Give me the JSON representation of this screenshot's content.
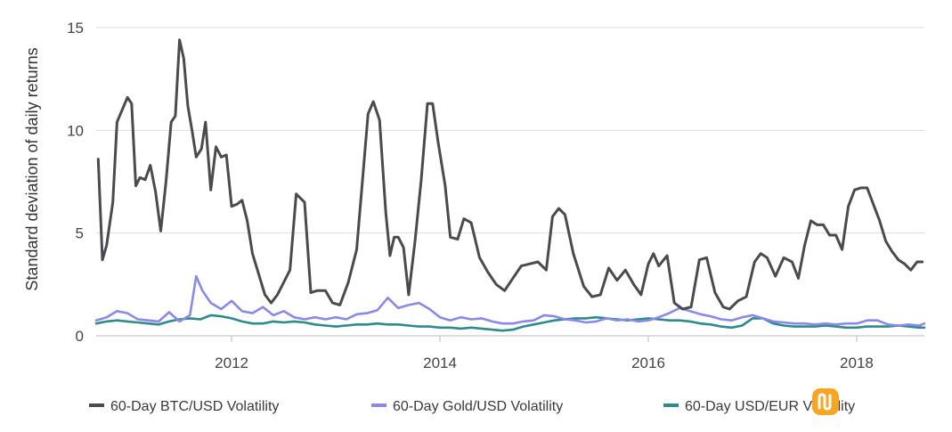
{
  "chart_data": {
    "type": "line",
    "ylabel": "Standard deviation of daily returns",
    "xlabel": "",
    "title": "",
    "xlim": [
      2010.7,
      2018.65
    ],
    "ylim": [
      0,
      15
    ],
    "x_ticks": [
      2012,
      2014,
      2016,
      2018
    ],
    "x_tick_labels": [
      "2012",
      "2014",
      "2016",
      "2018"
    ],
    "y_ticks": [
      0,
      5,
      10,
      15
    ],
    "y_tick_labels": [
      "0",
      "5",
      "10",
      "15"
    ],
    "grid": "horizontal",
    "legend_position": "bottom",
    "series": [
      {
        "name": "60-Day BTC/USD Volatility",
        "color": "#4a4a4f",
        "points": [
          [
            2010.72,
            8.6
          ],
          [
            2010.76,
            3.7
          ],
          [
            2010.8,
            4.4
          ],
          [
            2010.86,
            6.5
          ],
          [
            2010.9,
            10.4
          ],
          [
            2010.95,
            11.0
          ],
          [
            2011.0,
            11.6
          ],
          [
            2011.04,
            11.3
          ],
          [
            2011.08,
            7.3
          ],
          [
            2011.12,
            7.7
          ],
          [
            2011.17,
            7.6
          ],
          [
            2011.22,
            8.3
          ],
          [
            2011.27,
            7.0
          ],
          [
            2011.32,
            5.1
          ],
          [
            2011.37,
            7.5
          ],
          [
            2011.42,
            10.4
          ],
          [
            2011.46,
            10.7
          ],
          [
            2011.5,
            14.4
          ],
          [
            2011.54,
            13.5
          ],
          [
            2011.58,
            11.2
          ],
          [
            2011.62,
            10.0
          ],
          [
            2011.66,
            8.7
          ],
          [
            2011.71,
            9.1
          ],
          [
            2011.75,
            10.4
          ],
          [
            2011.8,
            7.1
          ],
          [
            2011.85,
            9.2
          ],
          [
            2011.9,
            8.7
          ],
          [
            2011.95,
            8.8
          ],
          [
            2012.0,
            6.3
          ],
          [
            2012.05,
            6.4
          ],
          [
            2012.1,
            6.6
          ],
          [
            2012.15,
            5.6
          ],
          [
            2012.2,
            4.0
          ],
          [
            2012.26,
            3.0
          ],
          [
            2012.32,
            2.0
          ],
          [
            2012.38,
            1.6
          ],
          [
            2012.44,
            2.0
          ],
          [
            2012.5,
            2.6
          ],
          [
            2012.56,
            3.2
          ],
          [
            2012.62,
            6.9
          ],
          [
            2012.7,
            6.5
          ],
          [
            2012.76,
            2.1
          ],
          [
            2012.82,
            2.2
          ],
          [
            2012.9,
            2.2
          ],
          [
            2012.97,
            1.6
          ],
          [
            2013.04,
            1.5
          ],
          [
            2013.12,
            2.6
          ],
          [
            2013.2,
            4.2
          ],
          [
            2013.26,
            7.8
          ],
          [
            2013.31,
            10.8
          ],
          [
            2013.36,
            11.4
          ],
          [
            2013.42,
            10.5
          ],
          [
            2013.48,
            6.0
          ],
          [
            2013.52,
            3.9
          ],
          [
            2013.56,
            4.8
          ],
          [
            2013.6,
            4.8
          ],
          [
            2013.65,
            4.3
          ],
          [
            2013.7,
            2.0
          ],
          [
            2013.76,
            4.6
          ],
          [
            2013.82,
            7.6
          ],
          [
            2013.88,
            11.3
          ],
          [
            2013.93,
            11.3
          ],
          [
            2013.98,
            9.5
          ],
          [
            2014.05,
            7.3
          ],
          [
            2014.1,
            4.8
          ],
          [
            2014.17,
            4.7
          ],
          [
            2014.23,
            5.7
          ],
          [
            2014.3,
            5.5
          ],
          [
            2014.38,
            3.8
          ],
          [
            2014.46,
            3.1
          ],
          [
            2014.54,
            2.5
          ],
          [
            2014.62,
            2.2
          ],
          [
            2014.7,
            2.8
          ],
          [
            2014.78,
            3.4
          ],
          [
            2014.86,
            3.5
          ],
          [
            2014.94,
            3.6
          ],
          [
            2015.02,
            3.2
          ],
          [
            2015.08,
            5.8
          ],
          [
            2015.14,
            6.2
          ],
          [
            2015.2,
            5.9
          ],
          [
            2015.28,
            4.0
          ],
          [
            2015.38,
            2.4
          ],
          [
            2015.46,
            1.9
          ],
          [
            2015.54,
            2.0
          ],
          [
            2015.62,
            3.3
          ],
          [
            2015.7,
            2.7
          ],
          [
            2015.78,
            3.2
          ],
          [
            2015.86,
            2.5
          ],
          [
            2015.93,
            2.0
          ],
          [
            2016.0,
            3.5
          ],
          [
            2016.05,
            4.0
          ],
          [
            2016.1,
            3.4
          ],
          [
            2016.18,
            3.9
          ],
          [
            2016.25,
            1.6
          ],
          [
            2016.33,
            1.3
          ],
          [
            2016.41,
            1.4
          ],
          [
            2016.49,
            3.7
          ],
          [
            2016.56,
            3.8
          ],
          [
            2016.64,
            2.1
          ],
          [
            2016.72,
            1.4
          ],
          [
            2016.78,
            1.3
          ],
          [
            2016.86,
            1.7
          ],
          [
            2016.94,
            1.9
          ],
          [
            2017.02,
            3.6
          ],
          [
            2017.08,
            4.0
          ],
          [
            2017.14,
            3.8
          ],
          [
            2017.22,
            2.9
          ],
          [
            2017.3,
            3.8
          ],
          [
            2017.38,
            3.6
          ],
          [
            2017.44,
            2.8
          ],
          [
            2017.5,
            4.4
          ],
          [
            2017.56,
            5.6
          ],
          [
            2017.62,
            5.4
          ],
          [
            2017.68,
            5.4
          ],
          [
            2017.74,
            4.9
          ],
          [
            2017.8,
            4.9
          ],
          [
            2017.86,
            4.2
          ],
          [
            2017.92,
            6.3
          ],
          [
            2017.98,
            7.1
          ],
          [
            2018.04,
            7.2
          ],
          [
            2018.1,
            7.2
          ],
          [
            2018.16,
            6.4
          ],
          [
            2018.22,
            5.6
          ],
          [
            2018.28,
            4.6
          ],
          [
            2018.34,
            4.1
          ],
          [
            2018.4,
            3.7
          ],
          [
            2018.46,
            3.5
          ],
          [
            2018.52,
            3.2
          ],
          [
            2018.58,
            3.6
          ],
          [
            2018.63,
            3.6
          ]
        ]
      },
      {
        "name": "60-Day Gold/USD Volatility",
        "color": "#8a8ae6",
        "points": [
          [
            2010.7,
            0.75
          ],
          [
            2010.8,
            0.9
          ],
          [
            2010.9,
            1.2
          ],
          [
            2011.0,
            1.1
          ],
          [
            2011.1,
            0.8
          ],
          [
            2011.2,
            0.75
          ],
          [
            2011.3,
            0.7
          ],
          [
            2011.4,
            1.15
          ],
          [
            2011.5,
            0.7
          ],
          [
            2011.6,
            1.0
          ],
          [
            2011.66,
            2.9
          ],
          [
            2011.72,
            2.2
          ],
          [
            2011.8,
            1.6
          ],
          [
            2011.9,
            1.3
          ],
          [
            2012.0,
            1.7
          ],
          [
            2012.1,
            1.2
          ],
          [
            2012.2,
            1.1
          ],
          [
            2012.3,
            1.4
          ],
          [
            2012.4,
            1.0
          ],
          [
            2012.5,
            1.2
          ],
          [
            2012.6,
            0.9
          ],
          [
            2012.7,
            0.8
          ],
          [
            2012.8,
            0.9
          ],
          [
            2012.9,
            0.8
          ],
          [
            2013.0,
            0.9
          ],
          [
            2013.1,
            0.8
          ],
          [
            2013.2,
            1.05
          ],
          [
            2013.3,
            1.1
          ],
          [
            2013.4,
            1.25
          ],
          [
            2013.5,
            1.85
          ],
          [
            2013.6,
            1.35
          ],
          [
            2013.7,
            1.5
          ],
          [
            2013.8,
            1.6
          ],
          [
            2013.9,
            1.3
          ],
          [
            2014.0,
            0.9
          ],
          [
            2014.1,
            0.75
          ],
          [
            2014.2,
            0.9
          ],
          [
            2014.3,
            0.8
          ],
          [
            2014.4,
            0.85
          ],
          [
            2014.5,
            0.7
          ],
          [
            2014.6,
            0.6
          ],
          [
            2014.7,
            0.6
          ],
          [
            2014.8,
            0.7
          ],
          [
            2014.9,
            0.75
          ],
          [
            2015.0,
            1.0
          ],
          [
            2015.1,
            0.95
          ],
          [
            2015.2,
            0.8
          ],
          [
            2015.3,
            0.75
          ],
          [
            2015.4,
            0.65
          ],
          [
            2015.5,
            0.7
          ],
          [
            2015.6,
            0.85
          ],
          [
            2015.7,
            0.75
          ],
          [
            2015.8,
            0.8
          ],
          [
            2015.9,
            0.7
          ],
          [
            2016.0,
            0.75
          ],
          [
            2016.1,
            0.9
          ],
          [
            2016.2,
            1.1
          ],
          [
            2016.3,
            1.35
          ],
          [
            2016.4,
            1.2
          ],
          [
            2016.5,
            1.05
          ],
          [
            2016.6,
            0.95
          ],
          [
            2016.7,
            0.8
          ],
          [
            2016.8,
            0.75
          ],
          [
            2016.9,
            0.9
          ],
          [
            2017.0,
            1.0
          ],
          [
            2017.1,
            0.85
          ],
          [
            2017.2,
            0.7
          ],
          [
            2017.3,
            0.65
          ],
          [
            2017.4,
            0.6
          ],
          [
            2017.5,
            0.6
          ],
          [
            2017.6,
            0.55
          ],
          [
            2017.7,
            0.6
          ],
          [
            2017.8,
            0.55
          ],
          [
            2017.9,
            0.6
          ],
          [
            2018.0,
            0.6
          ],
          [
            2018.1,
            0.75
          ],
          [
            2018.2,
            0.75
          ],
          [
            2018.3,
            0.55
          ],
          [
            2018.4,
            0.5
          ],
          [
            2018.5,
            0.55
          ],
          [
            2018.6,
            0.5
          ],
          [
            2018.65,
            0.6
          ]
        ]
      },
      {
        "name": "60-Day USD/EUR Volatility",
        "color": "#2e8b8b",
        "points": [
          [
            2010.7,
            0.6
          ],
          [
            2010.8,
            0.7
          ],
          [
            2010.9,
            0.75
          ],
          [
            2011.0,
            0.7
          ],
          [
            2011.1,
            0.65
          ],
          [
            2011.2,
            0.6
          ],
          [
            2011.3,
            0.55
          ],
          [
            2011.4,
            0.7
          ],
          [
            2011.5,
            0.8
          ],
          [
            2011.6,
            0.85
          ],
          [
            2011.7,
            0.8
          ],
          [
            2011.8,
            1.0
          ],
          [
            2011.9,
            0.95
          ],
          [
            2012.0,
            0.85
          ],
          [
            2012.1,
            0.7
          ],
          [
            2012.2,
            0.6
          ],
          [
            2012.3,
            0.6
          ],
          [
            2012.4,
            0.7
          ],
          [
            2012.5,
            0.65
          ],
          [
            2012.6,
            0.7
          ],
          [
            2012.7,
            0.65
          ],
          [
            2012.8,
            0.55
          ],
          [
            2012.9,
            0.5
          ],
          [
            2013.0,
            0.45
          ],
          [
            2013.1,
            0.5
          ],
          [
            2013.2,
            0.55
          ],
          [
            2013.3,
            0.55
          ],
          [
            2013.4,
            0.6
          ],
          [
            2013.5,
            0.55
          ],
          [
            2013.6,
            0.55
          ],
          [
            2013.7,
            0.5
          ],
          [
            2013.8,
            0.45
          ],
          [
            2013.9,
            0.45
          ],
          [
            2014.0,
            0.4
          ],
          [
            2014.1,
            0.4
          ],
          [
            2014.2,
            0.35
          ],
          [
            2014.3,
            0.4
          ],
          [
            2014.4,
            0.35
          ],
          [
            2014.5,
            0.3
          ],
          [
            2014.6,
            0.25
          ],
          [
            2014.7,
            0.3
          ],
          [
            2014.8,
            0.45
          ],
          [
            2014.9,
            0.55
          ],
          [
            2015.0,
            0.65
          ],
          [
            2015.1,
            0.75
          ],
          [
            2015.2,
            0.8
          ],
          [
            2015.3,
            0.85
          ],
          [
            2015.4,
            0.85
          ],
          [
            2015.5,
            0.9
          ],
          [
            2015.6,
            0.85
          ],
          [
            2015.7,
            0.8
          ],
          [
            2015.8,
            0.75
          ],
          [
            2015.9,
            0.8
          ],
          [
            2016.0,
            0.85
          ],
          [
            2016.1,
            0.8
          ],
          [
            2016.2,
            0.75
          ],
          [
            2016.3,
            0.75
          ],
          [
            2016.4,
            0.7
          ],
          [
            2016.5,
            0.6
          ],
          [
            2016.6,
            0.55
          ],
          [
            2016.7,
            0.45
          ],
          [
            2016.8,
            0.4
          ],
          [
            2016.9,
            0.5
          ],
          [
            2017.0,
            0.85
          ],
          [
            2017.1,
            0.85
          ],
          [
            2017.2,
            0.6
          ],
          [
            2017.3,
            0.5
          ],
          [
            2017.4,
            0.45
          ],
          [
            2017.5,
            0.45
          ],
          [
            2017.6,
            0.45
          ],
          [
            2017.7,
            0.5
          ],
          [
            2017.8,
            0.45
          ],
          [
            2017.9,
            0.4
          ],
          [
            2018.0,
            0.4
          ],
          [
            2018.1,
            0.45
          ],
          [
            2018.2,
            0.45
          ],
          [
            2018.3,
            0.45
          ],
          [
            2018.4,
            0.5
          ],
          [
            2018.5,
            0.45
          ],
          [
            2018.6,
            0.4
          ],
          [
            2018.65,
            0.4
          ]
        ]
      }
    ]
  },
  "legend": {
    "items": [
      {
        "label": "60-Day BTC/USD Volatility",
        "color": "#4a4a4f"
      },
      {
        "label": "60-Day Gold/USD Volatility",
        "color": "#8a8ae6"
      },
      {
        "label": "60-Day USD/EUR Volatility",
        "color": "#2e8b8b"
      }
    ]
  },
  "watermark": {
    "name": "watermark-logo",
    "color": "#f5a623"
  }
}
